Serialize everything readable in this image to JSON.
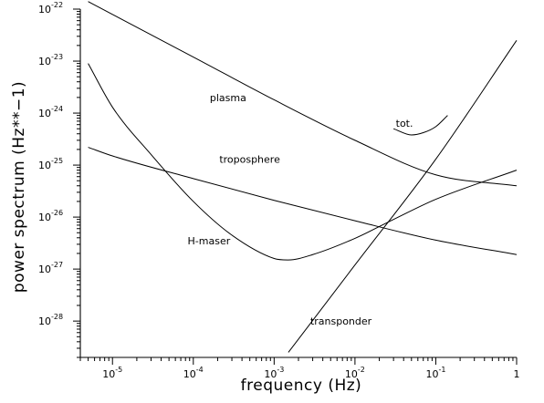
{
  "chart_data": {
    "type": "line",
    "title": "",
    "xlabel": "frequency (Hz)",
    "ylabel": "power spectrum (Hz**−1)",
    "xscale": "log",
    "yscale": "log",
    "xlim": [
      4e-06,
      1
    ],
    "ylim": [
      2e-29,
      1e-22
    ],
    "grid": false,
    "x_ticks": [
      {
        "base": "10",
        "exp": "-5",
        "value": 1e-05
      },
      {
        "base": "10",
        "exp": "-4",
        "value": 0.0001
      },
      {
        "base": "10",
        "exp": "-3",
        "value": 0.001
      },
      {
        "base": "10",
        "exp": "-2",
        "value": 0.01
      },
      {
        "base": "10",
        "exp": "-1",
        "value": 0.1
      },
      {
        "base": "1",
        "exp": "",
        "value": 1
      }
    ],
    "y_ticks": [
      {
        "base": "10",
        "exp": "-22",
        "value": 1e-22
      },
      {
        "base": "10",
        "exp": "-23",
        "value": 1e-23
      },
      {
        "base": "10",
        "exp": "-24",
        "value": 1e-24
      },
      {
        "base": "10",
        "exp": "-25",
        "value": 1e-25
      },
      {
        "base": "10",
        "exp": "-26",
        "value": 1e-26
      },
      {
        "base": "10",
        "exp": "-27",
        "value": 1e-27
      },
      {
        "base": "10",
        "exp": "-28",
        "value": 1e-28
      }
    ],
    "series": [
      {
        "name": "plasma",
        "x": [
          5e-06,
          1e-05,
          0.0001,
          0.001,
          0.01,
          0.1,
          1
        ],
        "y": [
          1.4e-22,
          7.9e-23,
          1.2e-23,
          1.8e-24,
          3e-25,
          6.5e-26,
          4e-26
        ]
      },
      {
        "name": "troposphere",
        "x": [
          5e-06,
          1e-05,
          0.0001,
          0.001,
          0.01,
          0.1,
          1
        ],
        "y": [
          2.2e-25,
          1.5e-25,
          5.5e-26,
          2.1e-26,
          8.5e-27,
          3.6e-27,
          1.9e-27
        ]
      },
      {
        "name": "H-maser",
        "x": [
          5e-06,
          1e-05,
          3e-05,
          0.0001,
          0.0003,
          0.001,
          0.0015,
          0.003,
          0.01,
          0.03,
          0.1,
          1
        ],
        "y": [
          9e-24,
          1.3e-24,
          1.6e-25,
          2e-26,
          4.5e-27,
          1.6e-27,
          1.5e-27,
          1.9e-27,
          3.9e-27,
          9e-27,
          2.2e-26,
          8e-26
        ]
      },
      {
        "name": "transponder",
        "x": [
          0.0015,
          0.01,
          0.1,
          1
        ],
        "y": [
          2.5e-29,
          1.2e-27,
          1.3e-25,
          2.5e-23
        ]
      },
      {
        "name": "tot.",
        "x": [
          0.03,
          0.05,
          0.07,
          0.1,
          0.14
        ],
        "y": [
          5e-25,
          3.8e-25,
          4.2e-25,
          5.5e-25,
          9e-25
        ]
      }
    ],
    "annotations": [
      {
        "text": "plasma",
        "x": 0.00016,
        "y": 1.7e-24
      },
      {
        "text": "tot.",
        "x": 0.032,
        "y": 5.5e-25
      },
      {
        "text": "troposphere",
        "x": 0.00021,
        "y": 1.1e-25
      },
      {
        "text": "H-maser",
        "x": 8.5e-05,
        "y": 3e-27
      },
      {
        "text": "transponder",
        "x": 0.0028,
        "y": 8.5e-29
      }
    ]
  }
}
